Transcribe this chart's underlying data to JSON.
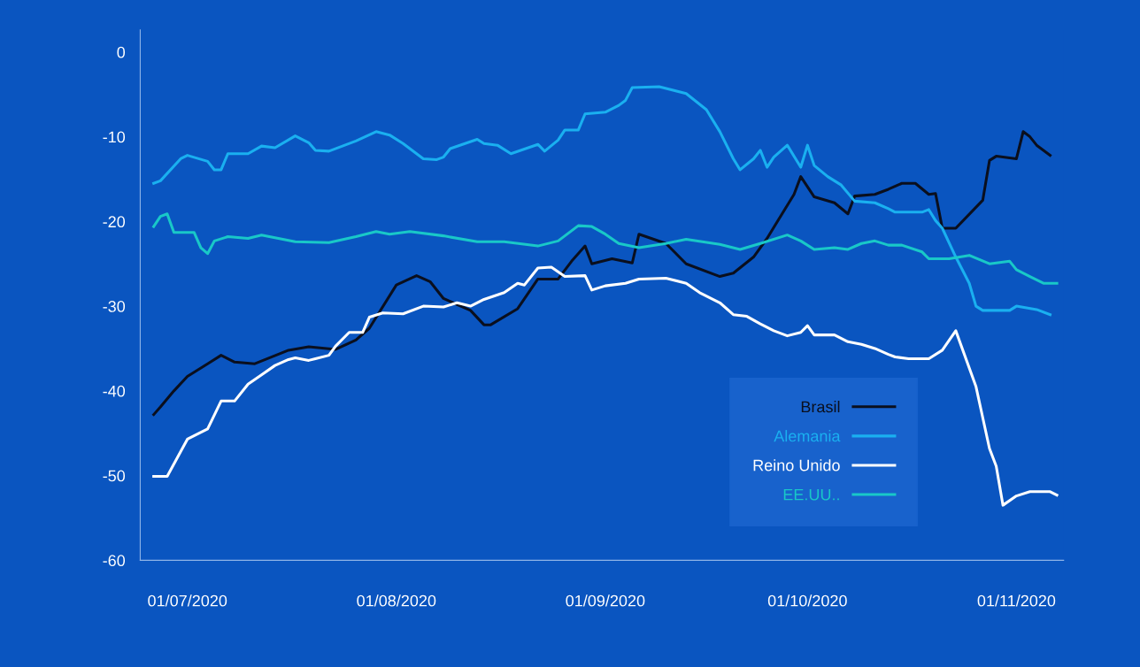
{
  "chart_data": {
    "type": "line",
    "legend": "bottom right",
    "grid": false,
    "line_style": "solid",
    "marker": "none",
    "xlim": [
      "2020-06-24",
      "2020-11-08"
    ],
    "ylim": [
      -60,
      2.6
    ],
    "yticks": [
      -60,
      -50,
      -40,
      -30,
      -20,
      -10,
      0
    ],
    "xticks": [
      {
        "value": "2020-07-01",
        "label": "01/07/2020"
      },
      {
        "value": "2020-08-01",
        "label": "01/08/2020"
      },
      {
        "value": "2020-09-01",
        "label": "01/09/2020"
      },
      {
        "value": "2020-10-01",
        "label": "01/10/2020"
      },
      {
        "value": "2020-11-01",
        "label": "01/11/2020"
      }
    ],
    "series": [
      {
        "name": "Brasil",
        "color": "#0a0f1e",
        "x": [
          "2020-06-26",
          "2020-06-27",
          "2020-06-29",
          "2020-07-01",
          "2020-07-04",
          "2020-07-06",
          "2020-07-08",
          "2020-07-11",
          "2020-07-16",
          "2020-07-19",
          "2020-07-23",
          "2020-07-26",
          "2020-07-28",
          "2020-08-01",
          "2020-08-04",
          "2020-08-06",
          "2020-08-08",
          "2020-08-12",
          "2020-08-14",
          "2020-08-15",
          "2020-08-19",
          "2020-08-22",
          "2020-08-25",
          "2020-08-27",
          "2020-08-29",
          "2020-08-30",
          "2020-09-02",
          "2020-09-05",
          "2020-09-06",
          "2020-09-10",
          "2020-09-13",
          "2020-09-18",
          "2020-09-20",
          "2020-09-23",
          "2020-09-25",
          "2020-09-29",
          "2020-09-30",
          "2020-10-02",
          "2020-10-05",
          "2020-10-07",
          "2020-10-08",
          "2020-10-11",
          "2020-10-13",
          "2020-10-15",
          "2020-10-17",
          "2020-10-19",
          "2020-10-20",
          "2020-10-21",
          "2020-10-23",
          "2020-10-27",
          "2020-10-28",
          "2020-10-29",
          "2020-11-01",
          "2020-11-02",
          "2020-11-03",
          "2020-11-04",
          "2020-11-06"
        ],
        "values": [
          -42.8,
          -41.9,
          -40,
          -38.3,
          -36.8,
          -35.8,
          -36.6,
          -36.8,
          -35.2,
          -34.8,
          -35.1,
          -34,
          -32.6,
          -27.5,
          -26.4,
          -27.1,
          -29.1,
          -30.5,
          -32.2,
          -32.2,
          -30.3,
          -26.8,
          -26.8,
          -24.7,
          -22.9,
          -25,
          -24.4,
          -24.9,
          -21.5,
          -22.6,
          -25,
          -26.5,
          -26.1,
          -24.2,
          -22,
          -16.8,
          -14.7,
          -17.1,
          -17.8,
          -19.1,
          -17,
          -16.8,
          -16.2,
          -15.5,
          -15.5,
          -16.8,
          -16.7,
          -20.8,
          -20.8,
          -17.5,
          -12.8,
          -12.3,
          -12.6,
          -9.4,
          -10,
          -11,
          -12.2
        ]
      },
      {
        "name": "Alemania",
        "color": "#1ab0f0",
        "x": [
          "2020-06-26",
          "2020-06-27",
          "2020-06-30",
          "2020-07-01",
          "2020-07-04",
          "2020-07-05",
          "2020-07-06",
          "2020-07-07",
          "2020-07-10",
          "2020-07-12",
          "2020-07-14",
          "2020-07-17",
          "2020-07-19",
          "2020-07-20",
          "2020-07-22",
          "2020-07-26",
          "2020-07-29",
          "2020-07-31",
          "2020-08-02",
          "2020-08-05",
          "2020-08-07",
          "2020-08-08",
          "2020-08-09",
          "2020-08-13",
          "2020-08-14",
          "2020-08-16",
          "2020-08-18",
          "2020-08-22",
          "2020-08-23",
          "2020-08-25",
          "2020-08-26",
          "2020-08-28",
          "2020-08-29",
          "2020-09-01",
          "2020-09-03",
          "2020-09-04",
          "2020-09-05",
          "2020-09-09",
          "2020-09-13",
          "2020-09-16",
          "2020-09-18",
          "2020-09-20",
          "2020-09-21",
          "2020-09-23",
          "2020-09-24",
          "2020-09-25",
          "2020-09-26",
          "2020-09-28",
          "2020-09-30",
          "2020-10-01",
          "2020-10-02",
          "2020-10-04",
          "2020-10-06",
          "2020-10-08",
          "2020-10-11",
          "2020-10-13",
          "2020-10-14",
          "2020-10-18",
          "2020-10-19",
          "2020-10-20",
          "2020-10-21",
          "2020-10-23",
          "2020-10-25",
          "2020-10-26",
          "2020-10-27",
          "2020-10-31",
          "2020-11-01",
          "2020-11-04",
          "2020-11-06"
        ],
        "values": [
          -15.5,
          -15.2,
          -12.6,
          -12.2,
          -12.9,
          -13.9,
          -13.9,
          -12,
          -12,
          -11.1,
          -11.3,
          -9.9,
          -10.7,
          -11.6,
          -11.7,
          -10.5,
          -9.4,
          -9.8,
          -10.8,
          -12.6,
          -12.7,
          -12.4,
          -11.4,
          -10.3,
          -10.8,
          -11,
          -12,
          -10.9,
          -11.7,
          -10.4,
          -9.2,
          -9.2,
          -7.3,
          -7.1,
          -6.3,
          -5.7,
          -4.2,
          -4.1,
          -4.9,
          -6.8,
          -9.4,
          -12.6,
          -13.9,
          -12.6,
          -11.6,
          -13.6,
          -12.4,
          -11,
          -13.6,
          -11,
          -13.4,
          -14.7,
          -15.7,
          -17.6,
          -17.8,
          -18.5,
          -18.9,
          -18.9,
          -18.6,
          -19.9,
          -20.8,
          -24.2,
          -27.3,
          -30,
          -30.5,
          -30.5,
          -30,
          -30.4,
          -31
        ]
      },
      {
        "name": "Reino Unido",
        "color": "#ffffff",
        "x": [
          "2020-06-26",
          "2020-06-28",
          "2020-07-01",
          "2020-07-04",
          "2020-07-06",
          "2020-07-08",
          "2020-07-10",
          "2020-07-12",
          "2020-07-14",
          "2020-07-16",
          "2020-07-17",
          "2020-07-19",
          "2020-07-20",
          "2020-07-22",
          "2020-07-23",
          "2020-07-25",
          "2020-07-27",
          "2020-07-28",
          "2020-07-30",
          "2020-08-02",
          "2020-08-05",
          "2020-08-08",
          "2020-08-10",
          "2020-08-12",
          "2020-08-14",
          "2020-08-17",
          "2020-08-19",
          "2020-08-20",
          "2020-08-22",
          "2020-08-24",
          "2020-08-26",
          "2020-08-29",
          "2020-08-30",
          "2020-09-01",
          "2020-09-04",
          "2020-09-06",
          "2020-09-10",
          "2020-09-13",
          "2020-09-15",
          "2020-09-18",
          "2020-09-20",
          "2020-09-22",
          "2020-09-24",
          "2020-09-26",
          "2020-09-28",
          "2020-09-30",
          "2020-10-01",
          "2020-10-02",
          "2020-10-05",
          "2020-10-07",
          "2020-10-09",
          "2020-10-11",
          "2020-10-13",
          "2020-10-14",
          "2020-10-16",
          "2020-10-19",
          "2020-10-21",
          "2020-10-23",
          "2020-10-26",
          "2020-10-28",
          "2020-10-29",
          "2020-10-30",
          "2020-11-01",
          "2020-11-03",
          "2020-11-06",
          "2020-11-07"
        ],
        "values": [
          -50.1,
          -50.1,
          -45.7,
          -44.5,
          -41.2,
          -41.2,
          -39.2,
          -38.1,
          -37,
          -36.3,
          -36.1,
          -36.4,
          -36.2,
          -35.8,
          -34.7,
          -33.1,
          -33.1,
          -31.3,
          -30.8,
          -30.9,
          -30,
          -30.1,
          -29.6,
          -30,
          -29.2,
          -28.4,
          -27.3,
          -27.5,
          -25.5,
          -25.4,
          -26.5,
          -26.4,
          -28.1,
          -27.6,
          -27.3,
          -26.8,
          -26.7,
          -27.3,
          -28.4,
          -29.6,
          -31,
          -31.2,
          -32.1,
          -32.9,
          -33.5,
          -33.1,
          -32.3,
          -33.4,
          -33.4,
          -34.2,
          -34.5,
          -35,
          -35.7,
          -36,
          -36.2,
          -36.2,
          -35.2,
          -32.9,
          -39.5,
          -46.8,
          -48.9,
          -53.5,
          -52.4,
          -51.9,
          -51.9,
          -52.3
        ]
      },
      {
        "name": "EE.UU..",
        "color": "#19c8c8",
        "x": [
          "2020-06-26",
          "2020-06-27",
          "2020-06-28",
          "2020-06-29",
          "2020-07-02",
          "2020-07-03",
          "2020-07-04",
          "2020-07-05",
          "2020-07-07",
          "2020-07-10",
          "2020-07-12",
          "2020-07-17",
          "2020-07-22",
          "2020-07-26",
          "2020-07-29",
          "2020-07-31",
          "2020-08-03",
          "2020-08-08",
          "2020-08-13",
          "2020-08-17",
          "2020-08-22",
          "2020-08-25",
          "2020-08-28",
          "2020-08-30",
          "2020-09-01",
          "2020-09-03",
          "2020-09-06",
          "2020-09-10",
          "2020-09-13",
          "2020-09-18",
          "2020-09-21",
          "2020-09-24",
          "2020-09-28",
          "2020-09-30",
          "2020-10-02",
          "2020-10-05",
          "2020-10-07",
          "2020-10-09",
          "2020-10-11",
          "2020-10-13",
          "2020-10-15",
          "2020-10-18",
          "2020-10-19",
          "2020-10-22",
          "2020-10-25",
          "2020-10-28",
          "2020-10-31",
          "2020-11-01",
          "2020-11-03",
          "2020-11-05",
          "2020-11-07"
        ],
        "values": [
          -20.6,
          -19.4,
          -19.1,
          -21.3,
          -21.3,
          -23.1,
          -23.8,
          -22.3,
          -21.8,
          -22,
          -21.6,
          -22.4,
          -22.5,
          -21.8,
          -21.2,
          -21.5,
          -21.2,
          -21.7,
          -22.4,
          -22.4,
          -22.9,
          -22.3,
          -20.5,
          -20.6,
          -21.5,
          -22.6,
          -23.1,
          -22.6,
          -22.1,
          -22.7,
          -23.3,
          -22.6,
          -21.6,
          -22.3,
          -23.3,
          -23.1,
          -23.3,
          -22.6,
          -22.3,
          -22.8,
          -22.8,
          -23.6,
          -24.4,
          -24.4,
          -24,
          -25,
          -24.7,
          -25.7,
          -26.5,
          -27.3,
          -27.3
        ]
      }
    ]
  }
}
